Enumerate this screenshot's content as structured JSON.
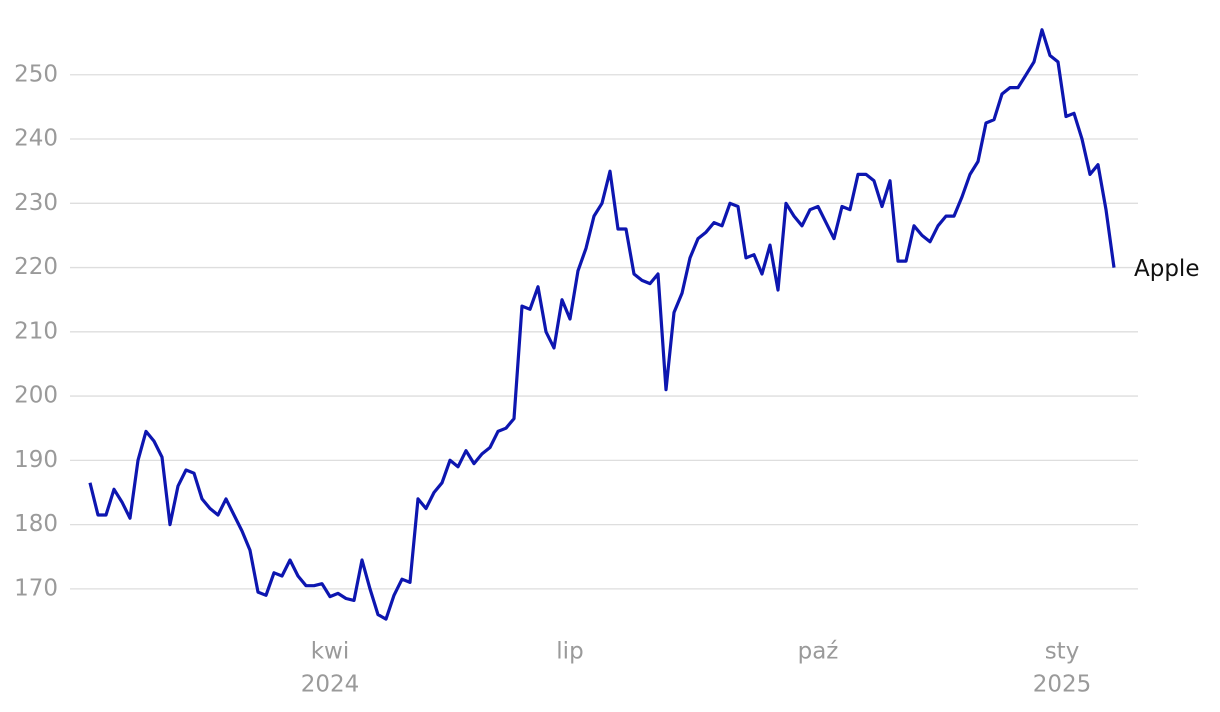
{
  "chart_data": {
    "type": "line",
    "series": [
      {
        "name": "Apple",
        "color": "#0d16b0",
        "values": [
          186.5,
          181.5,
          181.5,
          185.5,
          183.5,
          181,
          190,
          194.5,
          193,
          190.5,
          180,
          186,
          188.5,
          188,
          184,
          182.5,
          181.5,
          184,
          181.5,
          179,
          176,
          169.5,
          169,
          172.5,
          172,
          174.5,
          172,
          170.5,
          170.5,
          170.8,
          168.8,
          169.3,
          168.5,
          168.2,
          174.5,
          170,
          166,
          165.3,
          169,
          171.5,
          171,
          184,
          182.5,
          185,
          186.5,
          190,
          189,
          191.5,
          189.5,
          191,
          192,
          194.5,
          195,
          196.5,
          214,
          213.5,
          217,
          210,
          207.5,
          215,
          212,
          219.5,
          223,
          228,
          230,
          235,
          226,
          226,
          219,
          218,
          217.5,
          219,
          201,
          213,
          216,
          221.5,
          224.5,
          225.5,
          227,
          226.5,
          230,
          229.5,
          221.5,
          222,
          219,
          223.5,
          216.5,
          230,
          228,
          226.5,
          229,
          229.5,
          227,
          224.5,
          229.5,
          229,
          234.5,
          234.5,
          233.5,
          229.5,
          233.5,
          221,
          221,
          226.5,
          225,
          224,
          226.5,
          228,
          228,
          231,
          234.5,
          236.5,
          242.5,
          243,
          247,
          248,
          248,
          250,
          252,
          257,
          253,
          252,
          243.5,
          244,
          240,
          234.5,
          236,
          229,
          220
        ]
      }
    ],
    "xlim": [
      0,
      128
    ],
    "xticks": [
      {
        "value": 30,
        "label": [
          "kwi",
          "2024"
        ]
      },
      {
        "value": 60,
        "label": [
          "lip"
        ]
      },
      {
        "value": 91,
        "label": [
          "paź"
        ]
      },
      {
        "value": 121.5,
        "label": [
          "sty",
          "2025"
        ]
      }
    ],
    "ylim": [
      163.6,
      259.3
    ],
    "yticks": [
      170,
      180,
      190,
      200,
      210,
      220,
      230,
      240,
      250
    ],
    "grid": true
  }
}
